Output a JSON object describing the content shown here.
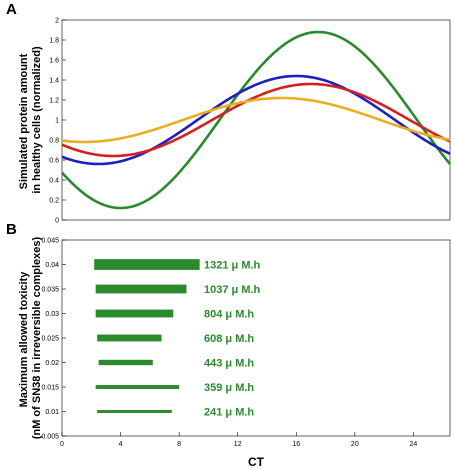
{
  "panels": {
    "A": {
      "letter": "A"
    },
    "B": {
      "letter": "B"
    }
  },
  "colors": {
    "green": "#2b8a2b",
    "blue": "#1f1fbf",
    "red": "#d42020",
    "orange": "#e8b020",
    "bar": "#2b8a2b"
  },
  "chart_data": [
    {
      "type": "line",
      "title": "",
      "xlabel": "",
      "ylabel": "Simulated protein amount in healthy cells (normalized)",
      "ylabel_lines": [
        "Simulated protein amount",
        "in healthy cells (normalized)"
      ],
      "xlim": [
        0,
        26.5
      ],
      "ylim": [
        0,
        2
      ],
      "yticks": [
        0,
        0.2,
        0.4,
        0.6,
        0.8,
        1,
        1.2,
        1.4,
        1.6,
        1.8,
        2
      ],
      "ytick_labels": [
        "0",
        "0.2",
        "0.4",
        "0.6",
        "0.8",
        "1",
        "1.2",
        "1.4",
        "1.6",
        "1.8",
        "2"
      ],
      "series": [
        {
          "color": "green",
          "mean": 1.0,
          "amplitude": 0.88,
          "peak_ct": 17.5,
          "period": 27
        },
        {
          "color": "blue",
          "mean": 1.0,
          "amplitude": 0.44,
          "peak_ct": 16.0,
          "period": 27
        },
        {
          "color": "red",
          "mean": 1.0,
          "amplitude": 0.36,
          "peak_ct": 17.0,
          "period": 27
        },
        {
          "color": "orange",
          "mean": 1.0,
          "amplitude": 0.22,
          "peak_ct": 15.0,
          "period": 27
        }
      ]
    },
    {
      "type": "bar",
      "orientation": "horizontal",
      "title": "",
      "xlabel": "CT",
      "ylabel": "Maximum allowed toxicity (nM of SN38 in irreversible complexes)",
      "ylabel_lines": [
        "Maximum allowed toxicity",
        "(nM of SN38 in irreversible complexes)"
      ],
      "xlim": [
        0,
        26.5
      ],
      "ylim": [
        0.005,
        0.045
      ],
      "xticks": [
        0,
        4,
        8,
        12,
        16,
        20,
        24
      ],
      "xtick_labels": [
        "0",
        "4",
        "8",
        "12",
        "16",
        "20",
        "24"
      ],
      "yticks": [
        0.005,
        0.01,
        0.015,
        0.02,
        0.025,
        0.03,
        0.035,
        0.04,
        0.045
      ],
      "ytick_labels": [
        "0.005",
        "0.01",
        "0.015",
        "0.02",
        "0.025",
        "0.03",
        "0.035",
        "0.04",
        "0.045"
      ],
      "bars": [
        {
          "y": 0.04,
          "x_start": 2.2,
          "x_end": 9.4,
          "thickness": 0.0022,
          "label": "1321 μ M.h"
        },
        {
          "y": 0.035,
          "x_start": 2.3,
          "x_end": 8.5,
          "thickness": 0.0018,
          "label": "1037 μ M.h"
        },
        {
          "y": 0.03,
          "x_start": 2.3,
          "x_end": 7.6,
          "thickness": 0.0016,
          "label": "804 μ M.h"
        },
        {
          "y": 0.025,
          "x_start": 2.4,
          "x_end": 6.8,
          "thickness": 0.0014,
          "label": "608 μ M.h"
        },
        {
          "y": 0.02,
          "x_start": 2.5,
          "x_end": 6.2,
          "thickness": 0.0011,
          "label": "443 μ M.h"
        },
        {
          "y": 0.015,
          "x_start": 2.3,
          "x_end": 8.0,
          "thickness": 0.0008,
          "label": "359 μ M.h"
        },
        {
          "y": 0.01,
          "x_start": 2.4,
          "x_end": 7.5,
          "thickness": 0.0006,
          "label": "241 μ M.h"
        }
      ]
    }
  ]
}
